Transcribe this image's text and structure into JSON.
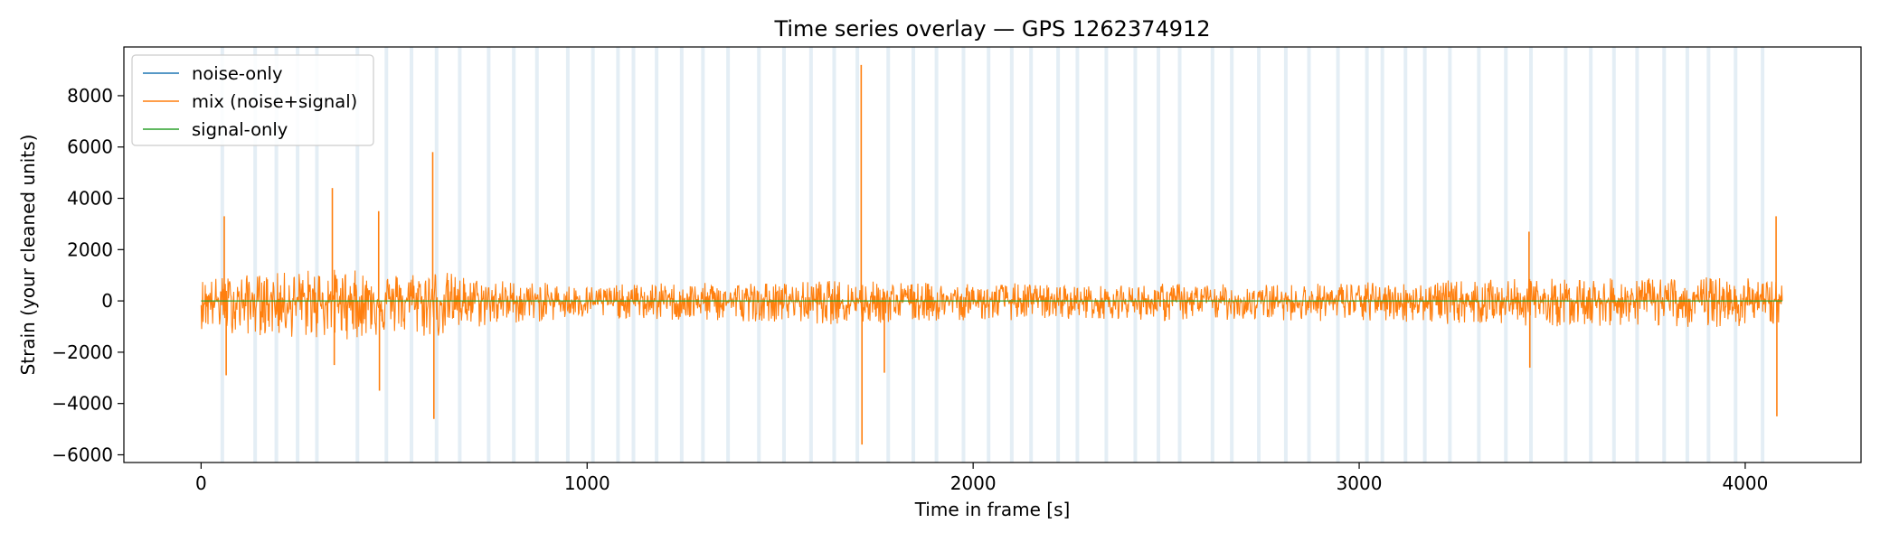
{
  "chart_data": {
    "type": "line",
    "title": "Time series overlay — GPS 1262374912",
    "xlabel": "Time in frame [s]",
    "ylabel": "Strain (your cleaned units)",
    "xlim": [
      -200,
      4300
    ],
    "ylim": [
      -6300,
      9900
    ],
    "xticks": [
      0,
      1000,
      2000,
      3000,
      4000
    ],
    "yticks": [
      -6000,
      -4000,
      -2000,
      0,
      2000,
      4000,
      6000,
      8000
    ],
    "grid": false,
    "legend_position": "upper left",
    "x_range": [
      0,
      4096
    ],
    "series": [
      {
        "name": "noise-only",
        "color": "#1f77b4",
        "values_note": null
      },
      {
        "name": "mix (noise+signal)",
        "color": "#ff7f0e"
      },
      {
        "name": "signal-only",
        "color": "#2ca02c",
        "value": 0
      }
    ],
    "mix_envelope": {
      "x": [
        0,
        100,
        200,
        300,
        400,
        500,
        600,
        700,
        800,
        900,
        1000,
        1100,
        1200,
        1300,
        1400,
        1500,
        1600,
        1700,
        1800,
        1900,
        2000,
        2100,
        2200,
        2300,
        2400,
        2500,
        2600,
        2700,
        2800,
        2900,
        3000,
        3100,
        3200,
        3300,
        3400,
        3500,
        3600,
        3700,
        3800,
        3900,
        4000,
        4096
      ],
      "upper": [
        900,
        1000,
        1100,
        1300,
        1200,
        1100,
        1300,
        900,
        800,
        700,
        600,
        650,
        700,
        700,
        750,
        700,
        800,
        800,
        750,
        700,
        650,
        700,
        650,
        600,
        600,
        700,
        650,
        650,
        650,
        700,
        750,
        700,
        800,
        800,
        850,
        900,
        900,
        850,
        900,
        950,
        900,
        800
      ],
      "lower": [
        -1100,
        -1300,
        -1400,
        -1500,
        -1500,
        -1300,
        -1500,
        -1100,
        -900,
        -800,
        -700,
        -700,
        -800,
        -800,
        -800,
        -800,
        -900,
        -950,
        -850,
        -800,
        -750,
        -750,
        -700,
        -700,
        -700,
        -800,
        -750,
        -750,
        -750,
        -800,
        -850,
        -800,
        -900,
        -900,
        -950,
        -1000,
        -1000,
        -950,
        -1000,
        -1050,
        -1000,
        -900
      ]
    },
    "mix_spikes": [
      {
        "x": 60,
        "value": 3300
      },
      {
        "x": 65,
        "value": -2900
      },
      {
        "x": 340,
        "value": 4400
      },
      {
        "x": 345,
        "value": -2500
      },
      {
        "x": 460,
        "value": 3500
      },
      {
        "x": 462,
        "value": -3500
      },
      {
        "x": 600,
        "value": 5800
      },
      {
        "x": 603,
        "value": -4600
      },
      {
        "x": 1710,
        "value": 9200
      },
      {
        "x": 1712,
        "value": -5600
      },
      {
        "x": 1770,
        "value": -2800
      },
      {
        "x": 3440,
        "value": 2700
      },
      {
        "x": 3442,
        "value": -2600
      },
      {
        "x": 4080,
        "value": 3300
      },
      {
        "x": 4082,
        "value": -4500
      }
    ],
    "shaded_bands_x": [
      55,
      140,
      195,
      250,
      300,
      405,
      480,
      545,
      610,
      670,
      745,
      810,
      870,
      950,
      1015,
      1080,
      1120,
      1180,
      1245,
      1300,
      1365,
      1445,
      1510,
      1580,
      1640,
      1700,
      1780,
      1845,
      1905,
      1975,
      2040,
      2100,
      2150,
      2220,
      2270,
      2345,
      2420,
      2480,
      2535,
      2620,
      2670,
      2740,
      2810,
      2870,
      2945,
      3020,
      3060,
      3120,
      3170,
      3235,
      3310,
      3380,
      3445,
      3535,
      3600,
      3660,
      3720,
      3790,
      3850,
      3905,
      3975,
      4045
    ]
  }
}
